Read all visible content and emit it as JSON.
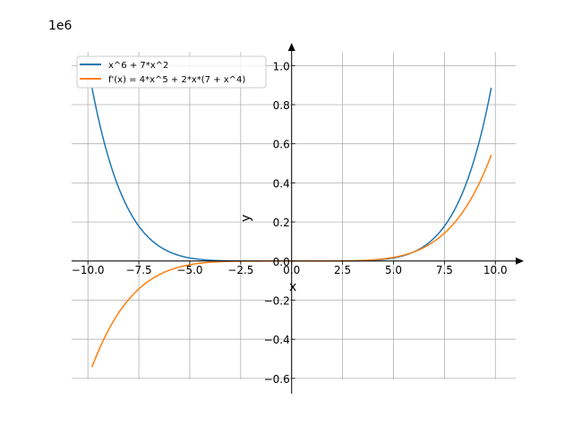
{
  "chart_data": {
    "type": "line",
    "title": "",
    "xlabel": "x",
    "ylabel": "y",
    "offset_label": "1e6",
    "xlim": [
      -10.8,
      11.0
    ],
    "ylim": [
      -0.605,
      1.07
    ],
    "x_domain": [
      -9.8,
      9.8
    ],
    "grid": true,
    "legend_placement": "top-left",
    "xticks": [
      -10.0,
      -7.5,
      -5.0,
      -2.5,
      0.0,
      2.5,
      5.0,
      7.5,
      10.0
    ],
    "xtick_labels": [
      "−10.0",
      "−7.5",
      "−5.0",
      "−2.5",
      "0.0",
      "2.5",
      "5.0",
      "7.5",
      "10.0"
    ],
    "yticks": [
      -0.6,
      -0.4,
      -0.2,
      0.0,
      0.2,
      0.4,
      0.6,
      0.8,
      1.0
    ],
    "ytick_labels": [
      "−0.6",
      "−0.4",
      "−0.2",
      "0.0",
      "0.2",
      "0.4",
      "0.6",
      "0.8",
      "1.0"
    ],
    "series": [
      {
        "name": "x^6 + 7*x^2",
        "color": "#1f77b4",
        "expr": "x^6+7x^2",
        "scale": 1e-06
      },
      {
        "name": "f'(x) = 4*x^5 + 2*x*(7 + x^4)",
        "color": "#ff7f0e",
        "expr": "6x^5+14x",
        "scale": 1e-06
      }
    ]
  }
}
